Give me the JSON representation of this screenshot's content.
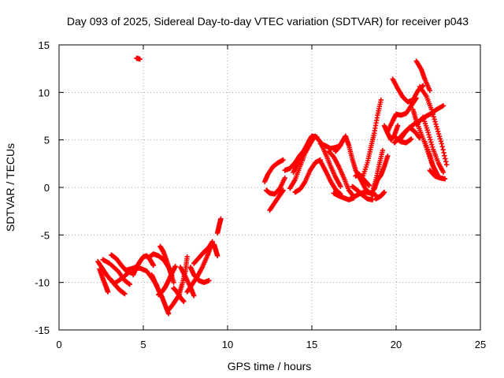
{
  "chart_data": {
    "type": "scatter",
    "title": "Day 093 of 2025, Sidereal Day-to-day VTEC variation (SDTVAR) for receiver p043",
    "xlabel": "GPS time / hours",
    "ylabel": "SDTVAR / TECUs",
    "xlim": [
      0,
      25
    ],
    "ylim": [
      -15,
      15
    ],
    "xticks": [
      0,
      5,
      10,
      15,
      20,
      25
    ],
    "yticks": [
      -15,
      -10,
      -5,
      0,
      5,
      10,
      15
    ],
    "grid": true,
    "marker": "plus",
    "color": "#ff0000",
    "tracks": [
      [
        [
          2.3,
          -7.8
        ],
        [
          2.6,
          -8.6
        ],
        [
          2.9,
          -9.4
        ],
        [
          3.3,
          -10.1
        ],
        [
          3.7,
          -9.6
        ],
        [
          4.1,
          -9.0
        ],
        [
          4.5,
          -8.4
        ]
      ],
      [
        [
          2.4,
          -8.6
        ],
        [
          2.6,
          -9.6
        ],
        [
          2.8,
          -10.5
        ],
        [
          2.9,
          -11.0
        ]
      ],
      [
        [
          2.6,
          -7.6
        ],
        [
          3.0,
          -8.0
        ],
        [
          3.5,
          -8.8
        ],
        [
          3.9,
          -9.8
        ],
        [
          4.2,
          -10.2
        ]
      ],
      [
        [
          3.1,
          -7.1
        ],
        [
          3.4,
          -7.5
        ],
        [
          3.7,
          -8.2
        ],
        [
          4.0,
          -8.8
        ],
        [
          4.3,
          -9.0
        ]
      ],
      [
        [
          3.0,
          -9.6
        ],
        [
          3.3,
          -10.2
        ],
        [
          3.6,
          -10.8
        ],
        [
          3.9,
          -11.2
        ]
      ],
      [
        [
          4.0,
          -8.7
        ],
        [
          4.4,
          -8.5
        ],
        [
          4.8,
          -8.5
        ],
        [
          5.2,
          -8.8
        ],
        [
          5.5,
          -9.5
        ],
        [
          5.8,
          -10.3
        ]
      ],
      [
        [
          4.4,
          -9.2
        ],
        [
          4.6,
          -8.4
        ],
        [
          4.8,
          -7.8
        ],
        [
          5.0,
          -7.3
        ],
        [
          5.2,
          -7.2
        ],
        [
          5.4,
          -7.6
        ],
        [
          5.6,
          -8.2
        ]
      ],
      [
        [
          5.3,
          -7.4
        ],
        [
          5.6,
          -7.0
        ],
        [
          5.9,
          -7.2
        ],
        [
          6.2,
          -7.6
        ],
        [
          6.5,
          -8.4
        ],
        [
          6.7,
          -9.3
        ]
      ],
      [
        [
          5.5,
          -9.2
        ],
        [
          5.7,
          -10.0
        ],
        [
          5.9,
          -10.8
        ],
        [
          6.1,
          -11.5
        ],
        [
          6.3,
          -12.4
        ],
        [
          6.5,
          -13.3
        ]
      ],
      [
        [
          5.9,
          -11.3
        ],
        [
          6.1,
          -11.0
        ],
        [
          6.3,
          -10.5
        ],
        [
          6.5,
          -9.8
        ],
        [
          6.7,
          -9.0
        ],
        [
          6.9,
          -8.3
        ]
      ],
      [
        [
          6.0,
          -6.2
        ],
        [
          6.2,
          -6.8
        ],
        [
          6.4,
          -7.8
        ],
        [
          6.6,
          -8.9
        ],
        [
          6.8,
          -10.0
        ]
      ],
      [
        [
          6.5,
          -12.9
        ],
        [
          6.8,
          -12.2
        ],
        [
          7.1,
          -11.4
        ],
        [
          7.3,
          -10.2
        ],
        [
          7.5,
          -8.8
        ],
        [
          7.6,
          -7.3
        ]
      ],
      [
        [
          6.8,
          -10.6
        ],
        [
          7.0,
          -11.0
        ],
        [
          7.2,
          -11.6
        ],
        [
          7.4,
          -12.0
        ]
      ],
      [
        [
          7.2,
          -8.4
        ],
        [
          7.5,
          -9.4
        ],
        [
          7.8,
          -10.5
        ],
        [
          8.0,
          -11.4
        ]
      ],
      [
        [
          7.6,
          -11.0
        ],
        [
          7.9,
          -10.2
        ],
        [
          8.2,
          -9.4
        ],
        [
          8.5,
          -8.4
        ],
        [
          8.8,
          -7.2
        ],
        [
          9.0,
          -6.2
        ]
      ],
      [
        [
          7.8,
          -8.4
        ],
        [
          8.0,
          -9.2
        ],
        [
          8.3,
          -9.8
        ],
        [
          8.6,
          -10.0
        ],
        [
          8.9,
          -9.8
        ]
      ],
      [
        [
          8.0,
          -8.0
        ],
        [
          8.3,
          -7.4
        ],
        [
          8.6,
          -6.8
        ],
        [
          8.9,
          -6.3
        ],
        [
          9.1,
          -5.7
        ]
      ],
      [
        [
          9.2,
          -6.0
        ],
        [
          9.3,
          -6.6
        ],
        [
          9.4,
          -7.2
        ]
      ],
      [
        [
          9.4,
          -4.8
        ],
        [
          9.5,
          -4.0
        ],
        [
          9.6,
          -3.3
        ]
      ],
      [
        [
          4.6,
          13.6
        ],
        [
          4.8,
          13.5
        ]
      ],
      [
        [
          12.2,
          0.6
        ],
        [
          12.4,
          1.4
        ],
        [
          12.7,
          2.2
        ],
        [
          13.0,
          2.6
        ],
        [
          13.3,
          2.9
        ]
      ],
      [
        [
          12.3,
          -0.3
        ],
        [
          12.5,
          -0.6
        ],
        [
          12.8,
          -0.7
        ],
        [
          13.1,
          -0.1
        ],
        [
          13.4,
          1.0
        ]
      ],
      [
        [
          12.5,
          -2.4
        ],
        [
          12.8,
          -1.6
        ],
        [
          13.1,
          -0.8
        ],
        [
          13.3,
          -0.3
        ]
      ],
      [
        [
          13.4,
          1.8
        ],
        [
          13.7,
          2.0
        ],
        [
          14.0,
          2.6
        ],
        [
          14.3,
          3.4
        ],
        [
          14.6,
          4.0
        ]
      ],
      [
        [
          13.7,
          -0.1
        ],
        [
          14.0,
          0.8
        ],
        [
          14.3,
          2.2
        ],
        [
          14.6,
          3.6
        ],
        [
          14.9,
          4.6
        ],
        [
          15.1,
          5.2
        ]
      ],
      [
        [
          13.9,
          1.6
        ],
        [
          14.2,
          2.6
        ],
        [
          14.5,
          3.8
        ],
        [
          14.8,
          4.8
        ],
        [
          15.0,
          5.4
        ],
        [
          15.3,
          5.3
        ]
      ],
      [
        [
          14.0,
          -0.5
        ],
        [
          14.3,
          -0.2
        ],
        [
          14.6,
          0.6
        ],
        [
          14.9,
          1.8
        ],
        [
          15.2,
          2.6
        ],
        [
          15.5,
          2.9
        ]
      ],
      [
        [
          15.2,
          5.4
        ],
        [
          15.5,
          4.8
        ],
        [
          15.8,
          3.6
        ],
        [
          16.1,
          2.3
        ],
        [
          16.4,
          1.1
        ],
        [
          16.7,
          0.1
        ]
      ],
      [
        [
          15.5,
          2.8
        ],
        [
          15.8,
          1.8
        ],
        [
          16.1,
          0.7
        ],
        [
          16.4,
          -0.2
        ],
        [
          16.7,
          -0.7
        ]
      ],
      [
        [
          15.5,
          4.6
        ],
        [
          15.8,
          4.4
        ],
        [
          16.1,
          4.1
        ],
        [
          16.4,
          4.2
        ],
        [
          16.7,
          4.4
        ]
      ],
      [
        [
          16.0,
          3.8
        ],
        [
          16.3,
          3.2
        ],
        [
          16.6,
          2.2
        ],
        [
          16.9,
          1.0
        ],
        [
          17.2,
          -0.3
        ],
        [
          17.5,
          -1.0
        ]
      ],
      [
        [
          16.3,
          -0.6
        ],
        [
          16.6,
          -0.9
        ],
        [
          16.9,
          -1.1
        ],
        [
          17.2,
          -1.3
        ],
        [
          17.5,
          -1.1
        ]
      ],
      [
        [
          16.4,
          3.8
        ],
        [
          16.6,
          4.2
        ],
        [
          16.8,
          4.8
        ],
        [
          17.0,
          5.4
        ]
      ],
      [
        [
          17.0,
          5.4
        ],
        [
          17.2,
          4.4
        ],
        [
          17.4,
          3.0
        ],
        [
          17.6,
          1.8
        ],
        [
          17.9,
          0.8
        ],
        [
          18.2,
          -0.2
        ],
        [
          18.6,
          -0.8
        ]
      ],
      [
        [
          17.6,
          1.2
        ],
        [
          17.8,
          1.4
        ],
        [
          18.0,
          1.0
        ],
        [
          18.2,
          0.6
        ],
        [
          18.4,
          0.2
        ]
      ],
      [
        [
          17.3,
          -1.2
        ],
        [
          17.6,
          -0.9
        ],
        [
          17.9,
          -0.6
        ],
        [
          18.2,
          -0.5
        ],
        [
          18.5,
          -0.6
        ],
        [
          18.8,
          -0.8
        ]
      ],
      [
        [
          17.4,
          0.1
        ],
        [
          17.7,
          -0.3
        ],
        [
          18.0,
          -0.8
        ],
        [
          18.3,
          -1.2
        ],
        [
          18.6,
          -1.3
        ]
      ],
      [
        [
          18.0,
          1.0
        ],
        [
          18.3,
          2.6
        ],
        [
          18.5,
          4.2
        ],
        [
          18.7,
          5.7
        ],
        [
          18.9,
          7.6
        ],
        [
          19.1,
          9.2
        ]
      ],
      [
        [
          18.6,
          -0.5
        ],
        [
          18.8,
          0.8
        ],
        [
          19.0,
          2.4
        ],
        [
          19.2,
          3.9
        ]
      ],
      [
        [
          18.7,
          -0.2
        ],
        [
          18.9,
          0.8
        ],
        [
          19.1,
          1.3
        ],
        [
          19.3,
          2.2
        ],
        [
          19.5,
          3.3
        ]
      ],
      [
        [
          18.8,
          -1.2
        ],
        [
          19.1,
          -0.9
        ],
        [
          19.3,
          -0.5
        ]
      ],
      [
        [
          19.3,
          6.5
        ],
        [
          19.5,
          5.7
        ],
        [
          19.7,
          5.0
        ],
        [
          19.9,
          5.5
        ],
        [
          20.1,
          6.5
        ]
      ],
      [
        [
          19.5,
          5.9
        ],
        [
          19.8,
          7.0
        ],
        [
          20.0,
          7.7
        ],
        [
          20.3,
          7.6
        ],
        [
          20.6,
          7.8
        ],
        [
          20.9,
          8.6
        ],
        [
          21.2,
          9.4
        ]
      ],
      [
        [
          19.8,
          11.4
        ],
        [
          20.1,
          10.4
        ],
        [
          20.4,
          9.5
        ],
        [
          20.7,
          9.0
        ],
        [
          21.0,
          9.2
        ],
        [
          21.3,
          10.2
        ],
        [
          21.6,
          10.7
        ]
      ],
      [
        [
          19.9,
          4.7
        ],
        [
          20.2,
          5.2
        ],
        [
          20.5,
          5.8
        ],
        [
          20.8,
          6.3
        ],
        [
          21.1,
          6.7
        ]
      ],
      [
        [
          20.0,
          5.2
        ],
        [
          20.3,
          4.8
        ],
        [
          20.6,
          4.7
        ],
        [
          20.9,
          5.1
        ]
      ],
      [
        [
          20.2,
          4.9
        ],
        [
          20.5,
          5.7
        ],
        [
          20.8,
          6.3
        ],
        [
          21.1,
          5.9
        ],
        [
          21.4,
          5.2
        ]
      ],
      [
        [
          21.0,
          8.2
        ],
        [
          21.2,
          7.0
        ],
        [
          21.5,
          5.6
        ],
        [
          21.8,
          4.2
        ],
        [
          22.1,
          2.6
        ],
        [
          22.4,
          1.5
        ]
      ],
      [
        [
          21.2,
          6.6
        ],
        [
          21.5,
          7.2
        ],
        [
          21.8,
          7.5
        ],
        [
          22.1,
          7.8
        ],
        [
          22.4,
          8.2
        ],
        [
          22.8,
          8.6
        ]
      ],
      [
        [
          21.2,
          13.3
        ],
        [
          21.5,
          12.4
        ],
        [
          21.7,
          11.4
        ],
        [
          22.0,
          10.2
        ]
      ],
      [
        [
          21.4,
          10.6
        ],
        [
          21.8,
          9.6
        ],
        [
          22.1,
          8.2
        ],
        [
          22.4,
          6.4
        ],
        [
          22.7,
          4.6
        ],
        [
          23.0,
          2.4
        ]
      ],
      [
        [
          21.6,
          7.4
        ],
        [
          21.9,
          5.8
        ],
        [
          22.2,
          4.0
        ],
        [
          22.5,
          2.6
        ],
        [
          22.8,
          1.6
        ]
      ],
      [
        [
          22.0,
          1.8
        ],
        [
          22.3,
          1.2
        ],
        [
          22.6,
          1.0
        ],
        [
          22.9,
          0.9
        ]
      ],
      [
        [
          21.7,
          4.8
        ],
        [
          22.0,
          3.4
        ],
        [
          22.2,
          2.2
        ],
        [
          22.5,
          1.2
        ]
      ]
    ]
  }
}
